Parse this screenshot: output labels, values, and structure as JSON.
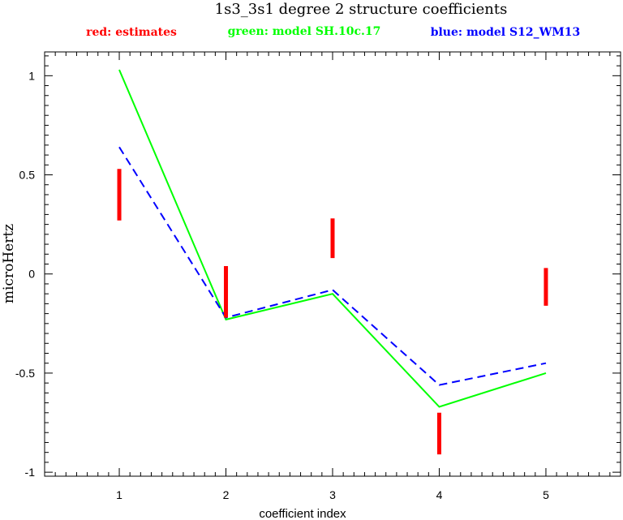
{
  "chart_data": {
    "type": "line",
    "title": "1s3_3s1 degree 2 structure coefficients",
    "xlabel": "coefficient index",
    "ylabel": "microHertz",
    "xlim": [
      0.3,
      5.7
    ],
    "ylim": [
      -1.02,
      1.12
    ],
    "x_ticks": [
      1,
      2,
      3,
      4,
      5
    ],
    "y_ticks": [
      -1,
      -0.5,
      0,
      0.5,
      1
    ],
    "y_tick_labels": [
      "-1",
      "-0.5",
      "0",
      "0.5",
      "1"
    ],
    "legend_placement": "top",
    "legend": [
      {
        "label": "red: estimates",
        "color": "#ff0000"
      },
      {
        "label": "green: model SH.10c.17",
        "color": "#00ff00"
      },
      {
        "label": "blue: model S12_WM13",
        "color": "#0000ff"
      }
    ],
    "estimates": {
      "name": "red: estimates",
      "color": "#ff0000",
      "style": "error bars",
      "x": [
        1,
        2,
        3,
        4,
        5
      ],
      "low": [
        0.27,
        -0.22,
        0.08,
        -0.91,
        -0.16
      ],
      "high": [
        0.53,
        0.04,
        0.28,
        -0.7,
        0.03
      ]
    },
    "series": [
      {
        "name": "green: model SH.10c.17",
        "color": "#00ff00",
        "style": "solid",
        "x": [
          1,
          2,
          3,
          4,
          5
        ],
        "values": [
          1.03,
          -0.23,
          -0.1,
          -0.67,
          -0.5
        ]
      },
      {
        "name": "blue: model S12_WM13",
        "color": "#0000ff",
        "style": "dashed",
        "x": [
          1,
          2,
          3,
          4,
          5
        ],
        "values": [
          0.64,
          -0.22,
          -0.08,
          -0.56,
          -0.45
        ]
      }
    ]
  }
}
